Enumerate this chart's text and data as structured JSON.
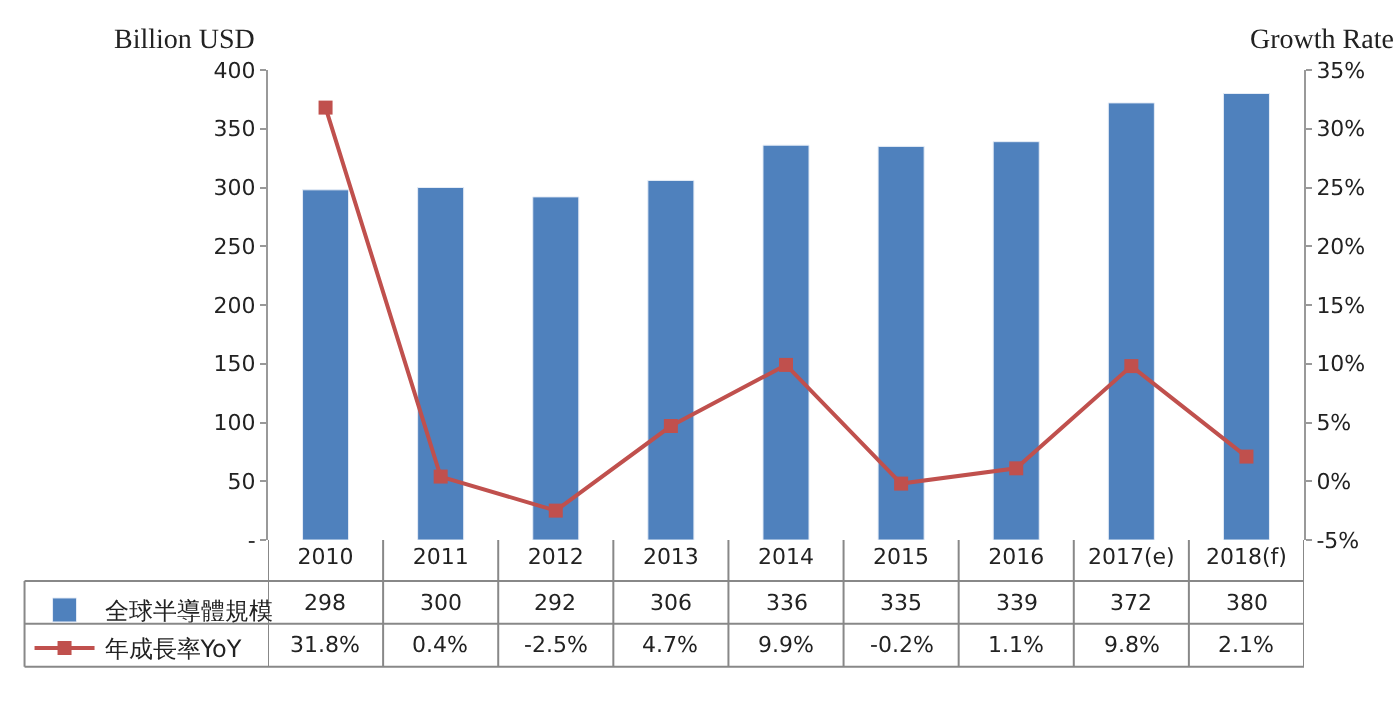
{
  "chart_data": {
    "type": "bar",
    "ylabel": "Billion USD",
    "y2label": "Growth Rate",
    "categories": [
      "2010",
      "2011",
      "2012",
      "2013",
      "2014",
      "2015",
      "2016",
      "2017(e)",
      "2018(f)"
    ],
    "series": [
      {
        "name": "全球半導體規模",
        "color": "#4f81bd",
        "values": [
          298,
          300,
          292,
          306,
          336,
          335,
          339,
          372,
          380
        ],
        "value_labels": [
          "298",
          "300",
          "292",
          "306",
          "336",
          "335",
          "339",
          "372",
          "380"
        ]
      },
      {
        "name": "年成長率YoY",
        "type": "line",
        "axis": "y2",
        "color": "#c0504d",
        "marker": "square",
        "values": [
          31.8,
          0.4,
          -2.5,
          4.7,
          9.9,
          -0.2,
          1.1,
          9.8,
          2.1
        ],
        "value_labels": [
          "31.8%",
          "0.4%",
          "-2.5%",
          "4.7%",
          "9.9%",
          "-0.2%",
          "1.1%",
          "9.8%",
          "2.1%"
        ]
      }
    ],
    "ylim": [
      0,
      400
    ],
    "yticks": [
      {
        "value": 0,
        "label": "-"
      },
      50,
      100,
      150,
      200,
      250,
      300,
      350,
      400
    ],
    "y2lim": [
      -5,
      35
    ],
    "y2ticks": [
      {
        "value": -5,
        "label": "-5%"
      },
      {
        "value": 0,
        "label": "0%"
      },
      {
        "value": 5,
        "label": "5%"
      },
      {
        "value": 10,
        "label": "10%"
      },
      {
        "value": 15,
        "label": "15%"
      },
      {
        "value": 20,
        "label": "20%"
      },
      {
        "value": 25,
        "label": "25%"
      },
      {
        "value": 30,
        "label": "30%"
      },
      {
        "value": 35,
        "label": "35%"
      }
    ],
    "legend": "bottom left"
  }
}
